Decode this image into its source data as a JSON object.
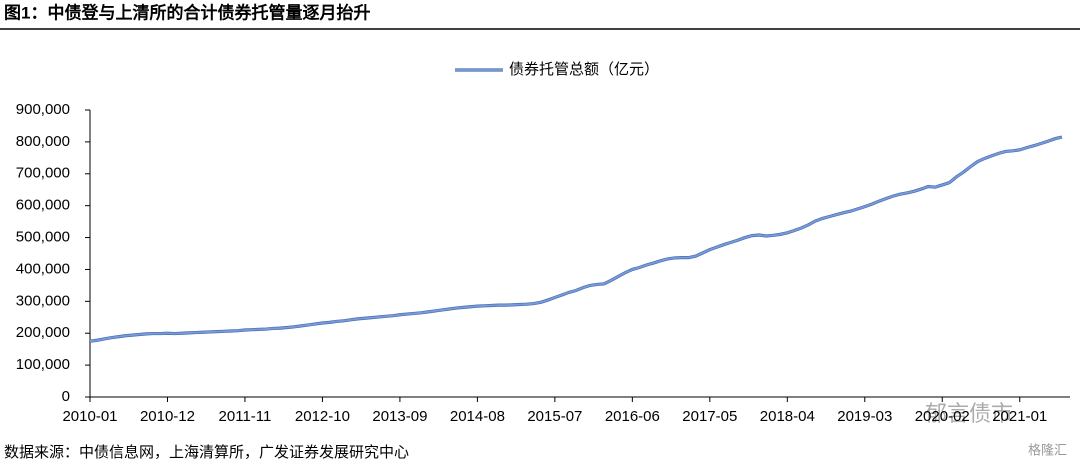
{
  "chart_data": {
    "type": "line",
    "title": "图1：中债登与上清所的合计债券托管量逐月抬升",
    "source": "数据来源：中债信息网，上海清算所，广发证券发展研究中心",
    "watermark": "郁言债市",
    "logo": "格隆汇",
    "legend_position": "top",
    "categories": [
      "2010-01",
      null,
      null,
      null,
      null,
      null,
      null,
      null,
      null,
      null,
      null,
      "2010-12",
      null,
      null,
      null,
      null,
      null,
      null,
      null,
      null,
      null,
      null,
      "2011-11",
      null,
      null,
      null,
      null,
      null,
      null,
      null,
      null,
      null,
      null,
      "2012-10",
      null,
      null,
      null,
      null,
      null,
      null,
      null,
      null,
      null,
      null,
      "2013-09",
      null,
      null,
      null,
      null,
      null,
      null,
      null,
      null,
      null,
      null,
      "2014-08",
      null,
      null,
      null,
      null,
      null,
      null,
      null,
      null,
      null,
      null,
      "2015-07",
      null,
      null,
      null,
      null,
      null,
      null,
      null,
      null,
      null,
      null,
      "2016-06",
      null,
      null,
      null,
      null,
      null,
      null,
      null,
      null,
      null,
      null,
      "2017-05",
      null,
      null,
      null,
      null,
      null,
      null,
      null,
      null,
      null,
      null,
      "2018-04",
      null,
      null,
      null,
      null,
      null,
      null,
      null,
      null,
      null,
      null,
      "2019-03",
      null,
      null,
      null,
      null,
      null,
      null,
      null,
      null,
      null,
      null,
      "2020-02",
      null,
      null,
      null,
      null,
      null,
      null,
      null,
      null,
      null,
      null,
      "2021-01",
      null,
      null,
      null,
      null,
      null,
      null
    ],
    "series": [
      {
        "name": "债券托管总额（亿元）",
        "color": "#7b9bd8",
        "values": [
          175000,
          178000,
          182000,
          186000,
          189000,
          192000,
          194000,
          196000,
          198000,
          199000,
          199000,
          200000,
          199000,
          200000,
          201000,
          202000,
          203000,
          204000,
          205000,
          206000,
          207000,
          208000,
          210000,
          211000,
          212000,
          213000,
          215000,
          216000,
          218000,
          220000,
          223000,
          226000,
          229000,
          232000,
          234000,
          237000,
          239000,
          242000,
          245000,
          247000,
          249000,
          251000,
          253000,
          255000,
          258000,
          260000,
          262000,
          264000,
          267000,
          270000,
          273000,
          276000,
          279000,
          281000,
          283000,
          285000,
          286000,
          287000,
          288000,
          288000,
          289000,
          290000,
          291000,
          293000,
          297000,
          304000,
          312000,
          320000,
          328000,
          334000,
          343000,
          350000,
          353000,
          355000,
          366000,
          378000,
          390000,
          400000,
          406000,
          414000,
          420000,
          427000,
          433000,
          436000,
          437000,
          437000,
          442000,
          452000,
          462000,
          470000,
          478000,
          485000,
          492000,
          500000,
          506000,
          508000,
          505000,
          507000,
          510000,
          515000,
          522000,
          530000,
          540000,
          552000,
          560000,
          566000,
          572000,
          578000,
          583000,
          590000,
          597000,
          605000,
          614000,
          622000,
          630000,
          636000,
          640000,
          645000,
          652000,
          660000,
          658000,
          665000,
          672000,
          690000,
          705000,
          722000,
          738000,
          748000,
          756000,
          764000,
          770000,
          772000,
          775000,
          782000,
          788000,
          795000,
          802000,
          810000,
          815000
        ]
      }
    ],
    "ylim": [
      0,
      900000
    ],
    "yticks": [
      0,
      {
        "value": 100000,
        "label": "100,000"
      },
      {
        "value": 200000,
        "label": "200,000"
      },
      {
        "value": 300000,
        "label": "300,000"
      },
      {
        "value": 400000,
        "label": "400,000"
      },
      {
        "value": 500000,
        "label": "500,000"
      },
      {
        "value": 600000,
        "label": "600,000"
      },
      {
        "value": 700000,
        "label": "700,000"
      },
      {
        "value": 800000,
        "label": "800,000"
      },
      {
        "value": 900000,
        "label": "900,000"
      }
    ],
    "grid": false
  }
}
